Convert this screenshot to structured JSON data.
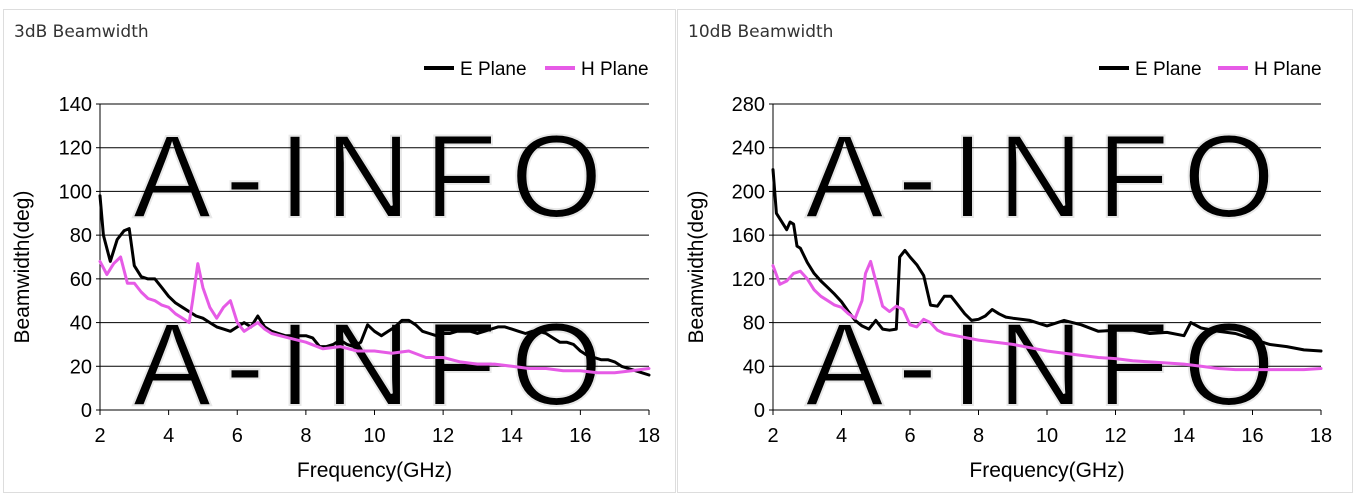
{
  "chart_data": [
    {
      "type": "line",
      "title": "3dB Beamwidth",
      "xlabel": "Frequency(GHz)",
      "ylabel": "Beamwidth(deg)",
      "xlim": [
        2,
        18
      ],
      "ylim": [
        0,
        140
      ],
      "xticks": [
        2,
        4,
        6,
        8,
        10,
        12,
        14,
        16,
        18
      ],
      "yticks": [
        0,
        20,
        40,
        60,
        80,
        100,
        120,
        140
      ],
      "grid": "horizontal",
      "legend": "top-right",
      "watermark": "A-INFO",
      "series": [
        {
          "name": "E Plane",
          "color": "#000000",
          "x": [
            2.0,
            2.1,
            2.3,
            2.5,
            2.7,
            2.85,
            3.0,
            3.2,
            3.4,
            3.6,
            3.8,
            4.0,
            4.2,
            4.4,
            4.6,
            4.8,
            5.0,
            5.2,
            5.4,
            5.6,
            5.8,
            6.0,
            6.2,
            6.4,
            6.6,
            6.8,
            7.0,
            7.2,
            7.4,
            7.6,
            7.8,
            8.0,
            8.2,
            8.4,
            8.6,
            8.8,
            9.0,
            9.2,
            9.4,
            9.6,
            9.8,
            10.0,
            10.2,
            10.4,
            10.6,
            10.8,
            11.0,
            11.2,
            11.4,
            11.6,
            11.8,
            12.0,
            12.2,
            12.4,
            12.6,
            12.8,
            13.0,
            13.2,
            13.4,
            13.6,
            13.8,
            14.0,
            14.2,
            14.4,
            14.6,
            14.8,
            15.0,
            15.2,
            15.4,
            15.6,
            15.8,
            16.0,
            16.2,
            16.4,
            16.6,
            16.8,
            17.0,
            17.2,
            17.4,
            17.6,
            17.8,
            18.0
          ],
          "y": [
            98,
            80,
            68,
            78,
            82,
            83,
            66,
            61,
            60,
            60,
            56,
            52,
            49,
            47,
            45,
            43,
            42,
            40,
            38,
            37,
            36,
            38,
            40,
            38,
            43,
            38,
            36,
            35,
            34,
            34,
            34,
            34,
            33,
            29,
            29,
            30,
            32,
            30,
            29,
            31,
            39,
            36,
            34,
            36,
            38,
            41,
            41,
            39,
            36,
            35,
            34,
            35,
            35,
            36,
            36,
            36,
            35,
            36,
            37,
            38,
            38,
            37,
            36,
            35,
            36,
            36,
            35,
            33,
            31,
            31,
            30,
            27,
            25,
            24,
            23,
            23,
            22,
            20,
            19,
            18,
            17,
            16
          ]
        },
        {
          "name": "H Plane",
          "color": "#e65be6",
          "x": [
            2.0,
            2.2,
            2.4,
            2.6,
            2.8,
            3.0,
            3.2,
            3.4,
            3.6,
            3.8,
            4.0,
            4.2,
            4.4,
            4.6,
            4.7,
            4.85,
            5.0,
            5.2,
            5.4,
            5.6,
            5.8,
            6.0,
            6.2,
            6.4,
            6.6,
            6.8,
            7.0,
            7.5,
            8.0,
            8.5,
            9.0,
            9.5,
            10.0,
            10.5,
            11.0,
            11.5,
            12.0,
            12.5,
            13.0,
            13.5,
            14.0,
            14.5,
            15.0,
            15.5,
            16.0,
            16.5,
            17.0,
            17.5,
            18.0
          ],
          "y": [
            68,
            62,
            67,
            70,
            58,
            58,
            54,
            51,
            50,
            48,
            47,
            44,
            42,
            40,
            50,
            67,
            56,
            47,
            42,
            47,
            50,
            40,
            36,
            38,
            40,
            37,
            35,
            33,
            31,
            28,
            29,
            27,
            27,
            26,
            27,
            24,
            24,
            22,
            21,
            21,
            20,
            19,
            19,
            18,
            18,
            17,
            17,
            18,
            19
          ]
        }
      ]
    },
    {
      "type": "line",
      "title": "10dB Beamwidth",
      "xlabel": "Frequency(GHz)",
      "ylabel": "Beamwidth(deg)",
      "xlim": [
        2,
        18
      ],
      "ylim": [
        0,
        280
      ],
      "xticks": [
        2,
        4,
        6,
        8,
        10,
        12,
        14,
        16,
        18
      ],
      "yticks": [
        0,
        40,
        80,
        120,
        160,
        200,
        240,
        280
      ],
      "grid": "horizontal",
      "legend": "top-right",
      "watermark": "A-INFO",
      "series": [
        {
          "name": "E Plane",
          "color": "#000000",
          "x": [
            2.0,
            2.1,
            2.2,
            2.4,
            2.5,
            2.6,
            2.7,
            2.8,
            3.0,
            3.2,
            3.4,
            3.6,
            3.8,
            4.0,
            4.2,
            4.4,
            4.6,
            4.8,
            5.0,
            5.2,
            5.4,
            5.6,
            5.7,
            5.85,
            6.0,
            6.2,
            6.4,
            6.6,
            6.8,
            7.0,
            7.2,
            7.4,
            7.6,
            7.8,
            8.0,
            8.2,
            8.4,
            8.6,
            8.8,
            9.0,
            9.5,
            10.0,
            10.5,
            11.0,
            11.5,
            12.0,
            12.5,
            13.0,
            13.5,
            14.0,
            14.2,
            14.5,
            15.0,
            15.5,
            16.0,
            16.5,
            17.0,
            17.5,
            18.0
          ],
          "y": [
            220,
            180,
            175,
            165,
            172,
            170,
            150,
            148,
            135,
            125,
            118,
            112,
            106,
            99,
            90,
            82,
            77,
            74,
            82,
            74,
            73,
            74,
            140,
            146,
            140,
            133,
            123,
            96,
            95,
            104,
            104,
            96,
            88,
            82,
            83,
            86,
            92,
            88,
            85,
            84,
            82,
            77,
            82,
            78,
            72,
            73,
            73,
            70,
            71,
            68,
            80,
            75,
            72,
            70,
            65,
            60,
            58,
            55,
            54
          ]
        },
        {
          "name": "H Plane",
          "color": "#e65be6",
          "x": [
            2.0,
            2.2,
            2.4,
            2.6,
            2.8,
            3.0,
            3.2,
            3.4,
            3.6,
            3.8,
            4.0,
            4.2,
            4.4,
            4.6,
            4.7,
            4.85,
            5.0,
            5.2,
            5.4,
            5.6,
            5.8,
            6.0,
            6.2,
            6.4,
            6.6,
            6.8,
            7.0,
            7.5,
            8.0,
            8.5,
            9.0,
            9.5,
            10.0,
            10.5,
            11.0,
            11.5,
            12.0,
            12.5,
            13.0,
            13.5,
            14.0,
            14.5,
            15.0,
            15.5,
            16.0,
            16.5,
            17.0,
            17.5,
            18.0
          ],
          "y": [
            132,
            115,
            118,
            125,
            127,
            120,
            110,
            104,
            100,
            96,
            94,
            88,
            84,
            100,
            125,
            136,
            118,
            95,
            90,
            95,
            92,
            78,
            76,
            83,
            80,
            73,
            70,
            67,
            64,
            62,
            60,
            57,
            54,
            52,
            50,
            48,
            47,
            45,
            44,
            43,
            42,
            40,
            38,
            37,
            37,
            37,
            37,
            37,
            38
          ]
        }
      ]
    }
  ]
}
